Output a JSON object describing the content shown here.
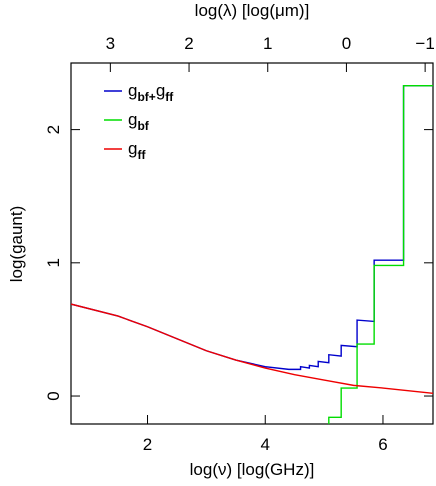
{
  "chart_data": {
    "type": "line",
    "xlabel": "log(ν)  [log(GHz)]",
    "ylabel": "log(gaunt)",
    "x2label": "log(λ)  [log(μm)]",
    "xlim": [
      0.7,
      6.85
    ],
    "xticks": [
      2,
      4,
      6
    ],
    "x2lim": [
      3.5,
      -1.1
    ],
    "x2ticks": [
      3,
      2,
      1,
      0,
      {
        "value": -1,
        "label": "−1"
      }
    ],
    "ylim": [
      -0.21,
      2.5
    ],
    "yticks": [
      0,
      1,
      2
    ],
    "legend": "top-left",
    "series": [
      {
        "name": "gbf+gff",
        "color": "#0000cc",
        "x": [
          0.7,
          1.5,
          2,
          2.5,
          3,
          3.5,
          4,
          4.4,
          4.6,
          4.6,
          4.75,
          4.75,
          4.9,
          4.9,
          5.08,
          5.08,
          5.29,
          5.29,
          5.56,
          5.56,
          5.85,
          5.85,
          6.35,
          6.35,
          6.85
        ],
        "values": [
          0.69,
          0.6,
          0.52,
          0.43,
          0.34,
          0.27,
          0.22,
          0.2,
          0.2,
          0.22,
          0.21,
          0.23,
          0.22,
          0.26,
          0.25,
          0.31,
          0.3,
          0.38,
          0.37,
          0.57,
          0.56,
          1.02,
          1.02,
          2.33,
          2.33
        ]
      },
      {
        "name": "gbf",
        "color": "#00dd00",
        "x": [
          5.08,
          5.08,
          5.29,
          5.29,
          5.56,
          5.56,
          5.85,
          5.85,
          6.35,
          6.35,
          6.85
        ],
        "values": [
          -0.21,
          -0.16,
          -0.16,
          0.06,
          0.06,
          0.39,
          0.39,
          0.98,
          0.98,
          2.33,
          2.33
        ]
      },
      {
        "name": "gff",
        "color": "#ee0000",
        "x": [
          0.7,
          1.5,
          2,
          2.5,
          3,
          3.5,
          4,
          4.5,
          5,
          5.5,
          6,
          6.85
        ],
        "values": [
          0.69,
          0.6,
          0.52,
          0.43,
          0.34,
          0.27,
          0.21,
          0.16,
          0.12,
          0.08,
          0.06,
          0.02
        ]
      }
    ]
  }
}
